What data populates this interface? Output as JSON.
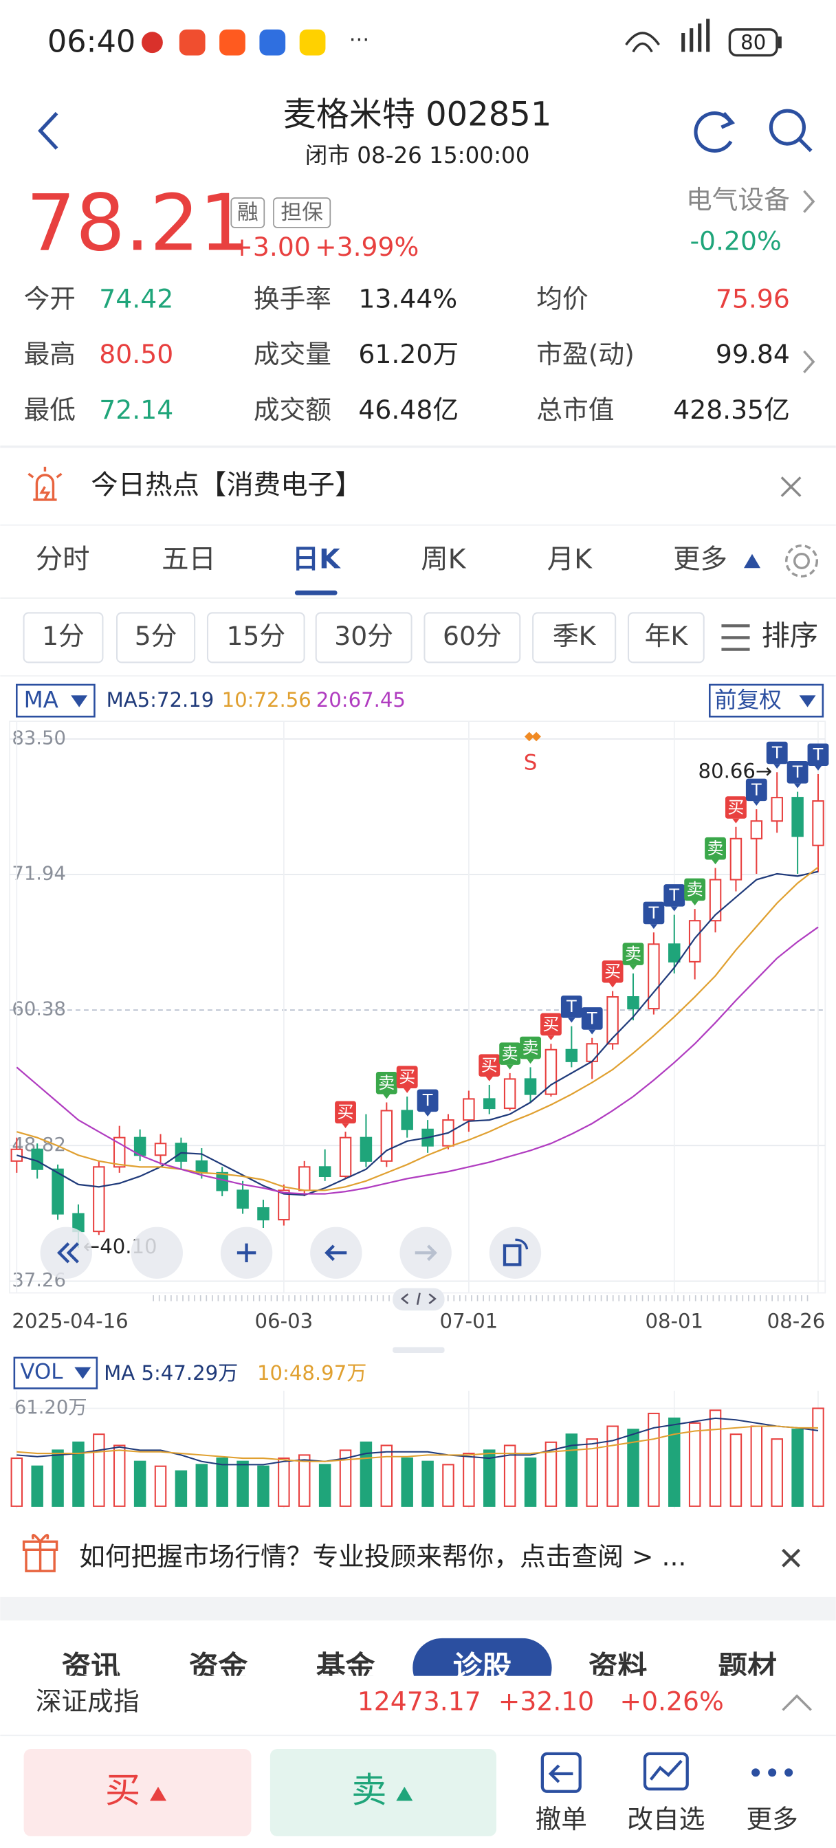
{
  "status_bar": {
    "time": "06:40",
    "battery": "80"
  },
  "header": {
    "title": "麦格米特 002851",
    "subtitle": "闭市 08-26 15:00:00"
  },
  "quote": {
    "price": "78.21",
    "change": "+3.00",
    "change_pct": "+3.99%",
    "tags": [
      "融",
      "担保"
    ],
    "sector": "电气设备",
    "sector_change": "-0.20%"
  },
  "stats": [
    {
      "label": "今开",
      "value": "74.42",
      "tone": "down"
    },
    {
      "label": "换手率",
      "value": "13.44%",
      "tone": "flat"
    },
    {
      "label": "均价",
      "value": "75.96",
      "tone": "up"
    },
    {
      "label": "最高",
      "value": "80.50",
      "tone": "up"
    },
    {
      "label": "成交量",
      "value": "61.20万",
      "tone": "flat"
    },
    {
      "label": "市盈(动)",
      "value": "99.84",
      "tone": "flat"
    },
    {
      "label": "最低",
      "value": "72.14",
      "tone": "down"
    },
    {
      "label": "成交额",
      "value": "46.48亿",
      "tone": "flat"
    },
    {
      "label": "总市值",
      "value": "428.35亿",
      "tone": "flat"
    }
  ],
  "hot_topic": "今日热点【消费电子】",
  "tabs": [
    "分时",
    "五日",
    "日K",
    "周K",
    "月K",
    "更多"
  ],
  "active_tab": 2,
  "periods": [
    "1分",
    "5分",
    "15分",
    "30分",
    "60分",
    "季K",
    "年K"
  ],
  "sort_label": "排序",
  "chart_data": {
    "type": "candlestick",
    "ma_select": "MA",
    "adjust_select": "前复权",
    "up_color": "#e8403f",
    "down_color": "#1fa57a",
    "categories": [
      "2025-04-16",
      null,
      null,
      null,
      null,
      null,
      null,
      null,
      null,
      null,
      null,
      null,
      null,
      "06-03",
      null,
      null,
      null,
      null,
      null,
      null,
      null,
      null,
      "07-01",
      null,
      null,
      null,
      null,
      null,
      null,
      null,
      null,
      null,
      "08-01",
      null,
      null,
      null,
      null,
      null,
      null,
      "08-26"
    ],
    "open": [
      47.5,
      48.5,
      46.8,
      43.0,
      41.5,
      47.0,
      49.5,
      48.0,
      49.0,
      47.5,
      46.5,
      45.0,
      43.5,
      42.5,
      45.0,
      47.0,
      46.2,
      49.5,
      47.5,
      51.8,
      50.2,
      48.8,
      51.0,
      52.8,
      52.0,
      54.5,
      53.2,
      57.0,
      56.0,
      57.5,
      61.5,
      60.5,
      66.0,
      64.5,
      68.0,
      71.5,
      75.0,
      76.5,
      78.5,
      74.42
    ],
    "high": [
      49.5,
      49.0,
      47.2,
      43.8,
      47.5,
      50.5,
      50.2,
      49.8,
      49.5,
      48.6,
      47.0,
      45.8,
      44.2,
      45.5,
      47.5,
      48.5,
      50.0,
      51.5,
      52.5,
      53.0,
      51.0,
      51.5,
      53.5,
      54.0,
      55.0,
      55.5,
      57.5,
      59.0,
      58.0,
      62.0,
      63.5,
      67.0,
      68.5,
      69.0,
      72.5,
      76.0,
      77.5,
      80.66,
      79.0,
      80.5
    ],
    "low": [
      46.5,
      46.0,
      42.5,
      40.1,
      41.2,
      46.5,
      47.5,
      47.2,
      46.8,
      46.0,
      44.5,
      43.0,
      41.8,
      42.0,
      44.5,
      45.8,
      46.0,
      47.0,
      47.0,
      49.5,
      48.2,
      48.5,
      50.0,
      51.5,
      51.8,
      52.5,
      53.0,
      55.5,
      54.5,
      57.0,
      59.5,
      60.0,
      63.5,
      63.0,
      67.0,
      70.5,
      72.0,
      75.5,
      72.0,
      72.14
    ],
    "close": [
      48.5,
      46.8,
      43.0,
      41.5,
      47.0,
      49.5,
      48.0,
      49.0,
      47.5,
      46.5,
      45.0,
      43.5,
      42.5,
      45.0,
      47.0,
      46.2,
      49.5,
      47.5,
      51.8,
      50.2,
      48.8,
      51.0,
      52.8,
      52.0,
      54.5,
      53.2,
      57.0,
      56.0,
      57.5,
      61.5,
      60.5,
      66.0,
      64.5,
      68.0,
      71.5,
      75.0,
      76.5,
      78.5,
      75.21,
      78.21
    ],
    "ma": [
      {
        "label": "MA5:72.19",
        "color": "#1f3a7a",
        "values": [
          48,
          47.5,
          46.5,
          45.5,
          45.3,
          45.6,
          46.2,
          47,
          48.2,
          48.1,
          47.2,
          46.3,
          45.4,
          44.7,
          44.6,
          45.2,
          46,
          46.8,
          48.4,
          49.2,
          49.5,
          49.9,
          50.9,
          51,
          51.5,
          52.5,
          54,
          55,
          56,
          58,
          59.8,
          61.9,
          64,
          66.5,
          68.5,
          70,
          71.5,
          72,
          71.8,
          72.19
        ]
      },
      {
        "label": "10:72.56",
        "color": "#e0a030",
        "values": [
          50,
          49.5,
          48.8,
          48,
          47.5,
          47.2,
          47,
          47,
          46.8,
          46.5,
          46.4,
          46.2,
          45.9,
          45.3,
          45,
          45,
          45.3,
          45.8,
          46.5,
          47.2,
          48,
          48.7,
          49.3,
          50,
          50.8,
          51.5,
          52.3,
          53.2,
          54.2,
          55.3,
          56.7,
          58.2,
          59.8,
          61.5,
          63.3,
          65.5,
          67.5,
          69.5,
          71.2,
          72.56
        ]
      },
      {
        "label": "20:67.45",
        "color": "#b03cc0",
        "values": [
          55.5,
          54,
          52.5,
          51,
          50,
          49,
          48,
          47.3,
          46.8,
          46.3,
          45.9,
          45.5,
          45.2,
          44.8,
          44.7,
          44.7,
          44.9,
          45.2,
          45.6,
          46,
          46.3,
          46.6,
          47,
          47.4,
          47.9,
          48.4,
          49,
          49.8,
          50.7,
          51.8,
          53,
          54.4,
          55.9,
          57.5,
          59.3,
          61.2,
          63,
          64.8,
          66.2,
          67.45
        ]
      }
    ],
    "ylim": [
      37.26,
      83.5
    ],
    "yticks": [
      {
        "value": 83.5,
        "label": "83.50"
      },
      71.94,
      60.38,
      48.82,
      37.26
    ],
    "max_label": {
      "value": 80.66,
      "label": "80.66→"
    },
    "min_label": {
      "value": 40.1,
      "label": "←40.10"
    },
    "signals": [
      {
        "label": "买",
        "candle": 16
      },
      {
        "label": "卖",
        "candle": 18
      },
      {
        "label": "买",
        "candle": 19
      },
      {
        "label": "T",
        "candle": 20
      },
      {
        "label": "买",
        "candle": 23
      },
      {
        "label": "卖",
        "candle": 24
      },
      {
        "label": "卖",
        "candle": 25
      },
      {
        "label": "S",
        "candle": 25
      },
      {
        "label": "买",
        "candle": 26
      },
      {
        "label": "T",
        "candle": 27
      },
      {
        "label": "T",
        "candle": 28
      },
      {
        "label": "买",
        "candle": 29
      },
      {
        "label": "卖",
        "candle": 30
      },
      {
        "label": "T",
        "candle": 31
      },
      {
        "label": "T",
        "candle": 32
      },
      {
        "label": "卖",
        "candle": 33
      },
      {
        "label": "卖",
        "candle": 34
      },
      {
        "label": "买",
        "candle": 35
      },
      {
        "label": "T",
        "candle": 36
      },
      {
        "label": "T",
        "candle": 37
      },
      {
        "label": "T",
        "candle": 38
      },
      {
        "label": "T",
        "candle": 39
      }
    ],
    "volume": {
      "select": "VOL",
      "values": [
        30,
        25,
        35,
        40,
        45,
        38,
        28,
        25,
        22,
        26,
        30,
        28,
        25,
        30,
        32,
        26,
        35,
        40,
        38,
        30,
        28,
        26,
        33,
        35,
        38,
        30,
        40,
        45,
        42,
        50,
        48,
        58,
        55,
        52,
        60,
        45,
        50,
        42,
        48,
        61.2
      ],
      "ma": [
        {
          "label": "MA 5:47.29万",
          "color": "#1f3a7a",
          "values": [
            32,
            31,
            32,
            33,
            35,
            37,
            35,
            35,
            32,
            28,
            26,
            26,
            26,
            28,
            29,
            28,
            30,
            33,
            34,
            34,
            34,
            32,
            31,
            30,
            32,
            32,
            35,
            38,
            39,
            41,
            45,
            49,
            51,
            53,
            55,
            54,
            52,
            50,
            49,
            47.29
          ]
        },
        {
          "label": "10:48.97万",
          "color": "#e0a030",
          "values": [
            34,
            33,
            33,
            33,
            34,
            35,
            34,
            34,
            33,
            32,
            31,
            30,
            30,
            29,
            28,
            28,
            29,
            30,
            31,
            31,
            32,
            32,
            32,
            33,
            33,
            33,
            34,
            35,
            36,
            38,
            40,
            42,
            45,
            47,
            48,
            49,
            50,
            50,
            49,
            48.97
          ]
        }
      ],
      "ylim": [
        0,
        70
      ],
      "yticks": [
        {
          "value": 61.2,
          "label": "61.20万"
        }
      ]
    }
  },
  "ad_text": "如何把握市场行情？专业投顾来帮你，点击查阅 > ...",
  "news_tabs": [
    "资讯",
    "资金",
    "基金",
    "诊股",
    "资料",
    "题材"
  ],
  "active_news_tab": 3,
  "index_bar": {
    "name": "深证成指",
    "value": "12473.17",
    "change": "+32.10",
    "change_pct": "+0.26%"
  },
  "actions": {
    "buy": "买",
    "sell": "卖",
    "cancel": "撤单",
    "watch": "改自选",
    "more": "更多"
  }
}
